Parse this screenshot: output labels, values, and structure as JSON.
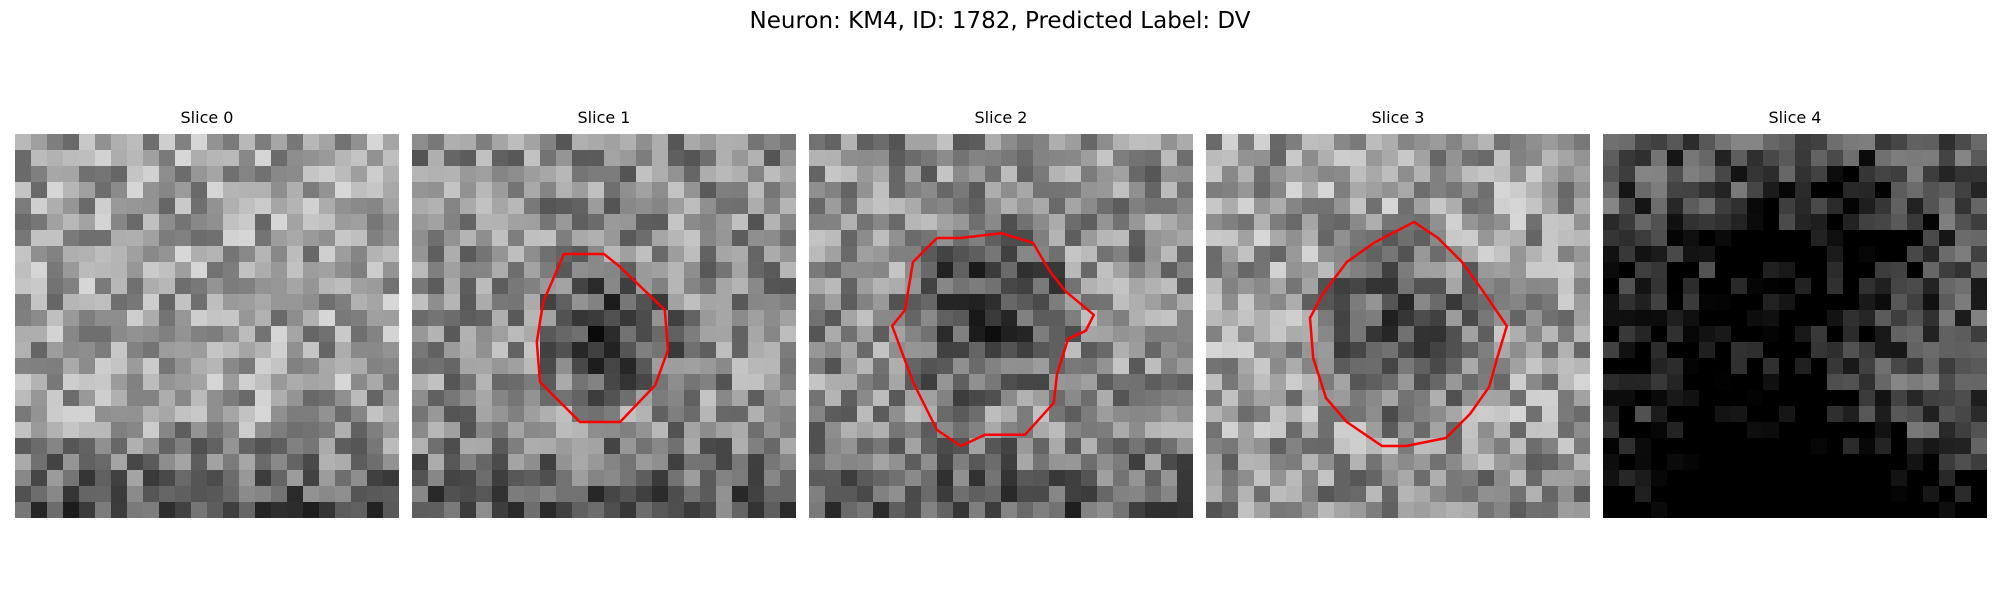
{
  "figure": {
    "title": "Neuron: KM4, ID: 1782, Predicted Label: DV"
  },
  "slices": [
    {
      "title": "Slice 0",
      "has_contour": false,
      "brightness": 0.62,
      "contour_color": "#ff0000"
    },
    {
      "title": "Slice 1",
      "has_contour": true,
      "brightness": 0.55,
      "contour_color": "#ff0000"
    },
    {
      "title": "Slice 2",
      "has_contour": true,
      "brightness": 0.55,
      "contour_color": "#ff0000"
    },
    {
      "title": "Slice 3",
      "has_contour": true,
      "brightness": 0.62,
      "contour_color": "#ff0000"
    },
    {
      "title": "Slice 4",
      "has_contour": false,
      "brightness": 0.3,
      "contour_color": "#ff0000"
    }
  ]
}
